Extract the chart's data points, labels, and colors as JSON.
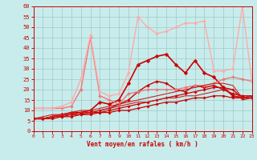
{
  "xlabel": "Vent moyen/en rafales ( km/h )",
  "xlim": [
    0,
    23
  ],
  "ylim": [
    0,
    60
  ],
  "yticks": [
    0,
    5,
    10,
    15,
    20,
    25,
    30,
    35,
    40,
    45,
    50,
    55,
    60
  ],
  "xticks": [
    0,
    1,
    2,
    3,
    4,
    5,
    6,
    7,
    8,
    9,
    10,
    11,
    12,
    13,
    14,
    15,
    16,
    17,
    18,
    19,
    20,
    21,
    22,
    23
  ],
  "bg_color": "#c8ecec",
  "grid_color": "#a0c8c8",
  "series": [
    {
      "x": [
        0,
        1,
        2,
        3,
        4,
        5,
        6,
        7,
        8,
        9,
        10,
        11,
        12,
        13,
        14,
        15,
        16,
        17,
        18,
        19,
        20,
        21,
        22,
        23
      ],
      "y": [
        6,
        6,
        6,
        7,
        7,
        8,
        8,
        9,
        9,
        10,
        10,
        11,
        12,
        13,
        14,
        14,
        15,
        16,
        16,
        17,
        17,
        16,
        16,
        16
      ],
      "color": "#cc0000",
      "lw": 0.9,
      "marker": "D",
      "ms": 1.8
    },
    {
      "x": [
        0,
        1,
        2,
        3,
        4,
        5,
        6,
        7,
        8,
        9,
        10,
        11,
        12,
        13,
        14,
        15,
        16,
        17,
        18,
        19,
        20,
        21,
        22,
        23
      ],
      "y": [
        6,
        6,
        7,
        7,
        8,
        8,
        9,
        9,
        10,
        11,
        12,
        13,
        14,
        15,
        16,
        17,
        18,
        19,
        20,
        21,
        21,
        20,
        16,
        17
      ],
      "color": "#cc0000",
      "lw": 0.9,
      "marker": "D",
      "ms": 1.8
    },
    {
      "x": [
        0,
        1,
        2,
        3,
        4,
        5,
        6,
        7,
        8,
        9,
        10,
        11,
        12,
        13,
        14,
        15,
        16,
        17,
        18,
        19,
        20,
        21,
        22,
        23
      ],
      "y": [
        6,
        6,
        7,
        8,
        8,
        9,
        9,
        10,
        11,
        13,
        15,
        19,
        22,
        24,
        23,
        20,
        19,
        22,
        21,
        22,
        20,
        18,
        17,
        17
      ],
      "color": "#cc0000",
      "lw": 1.0,
      "marker": "D",
      "ms": 2.0
    },
    {
      "x": [
        0,
        1,
        2,
        3,
        4,
        5,
        6,
        7,
        8,
        9,
        10,
        11,
        12,
        13,
        14,
        15,
        16,
        17,
        18,
        19,
        20,
        21,
        22,
        23
      ],
      "y": [
        6,
        6,
        7,
        8,
        9,
        9,
        10,
        14,
        13,
        15,
        23,
        32,
        34,
        36,
        37,
        32,
        28,
        34,
        28,
        26,
        21,
        17,
        16,
        16
      ],
      "color": "#cc0000",
      "lw": 1.2,
      "marker": "D",
      "ms": 2.5
    },
    {
      "x": [
        0,
        1,
        2,
        3,
        4,
        5,
        6,
        7,
        8,
        9,
        10,
        11,
        12,
        13,
        14,
        15,
        16,
        17,
        18,
        19,
        20,
        21,
        22,
        23
      ],
      "y": [
        11,
        11,
        11,
        11,
        12,
        20,
        45,
        17,
        15,
        13,
        18,
        19,
        20,
        20,
        20,
        20,
        21,
        22,
        22,
        23,
        25,
        26,
        25,
        24
      ],
      "color": "#ee7777",
      "lw": 1.0,
      "marker": "D",
      "ms": 2.0
    },
    {
      "x": [
        0,
        1,
        2,
        3,
        4,
        5,
        6,
        7,
        8,
        9,
        10,
        11,
        12,
        13,
        14,
        15,
        16,
        17,
        18,
        19,
        20,
        21,
        22,
        23
      ],
      "y": [
        11,
        11,
        11,
        12,
        14,
        25,
        46,
        19,
        17,
        18,
        28,
        55,
        50,
        47,
        48,
        50,
        52,
        52,
        53,
        29,
        29,
        30,
        60,
        24
      ],
      "color": "#ffaaaa",
      "lw": 1.0,
      "marker": "D",
      "ms": 2.0
    },
    {
      "x": [
        0,
        1,
        2,
        3,
        4,
        5,
        6,
        7,
        8,
        9,
        10,
        11,
        12,
        13,
        14,
        15,
        16,
        17,
        18,
        19,
        20,
        21,
        22,
        23
      ],
      "y": [
        6,
        6,
        7,
        8,
        8,
        9,
        9,
        10,
        11,
        12,
        13,
        14,
        14,
        15,
        16,
        16,
        17,
        17,
        18,
        19,
        20,
        20,
        15,
        16
      ],
      "color": "#cc2222",
      "lw": 0.8,
      "marker": null,
      "ms": 0
    },
    {
      "x": [
        0,
        1,
        2,
        3,
        4,
        5,
        6,
        7,
        8,
        9,
        10,
        11,
        12,
        13,
        14,
        15,
        16,
        17,
        18,
        19,
        20,
        21,
        22,
        23
      ],
      "y": [
        6,
        7,
        8,
        8,
        9,
        10,
        10,
        11,
        12,
        13,
        14,
        15,
        16,
        17,
        18,
        19,
        20,
        21,
        22,
        23,
        23,
        22,
        16,
        17
      ],
      "color": "#cc2222",
      "lw": 0.8,
      "marker": null,
      "ms": 0
    }
  ]
}
